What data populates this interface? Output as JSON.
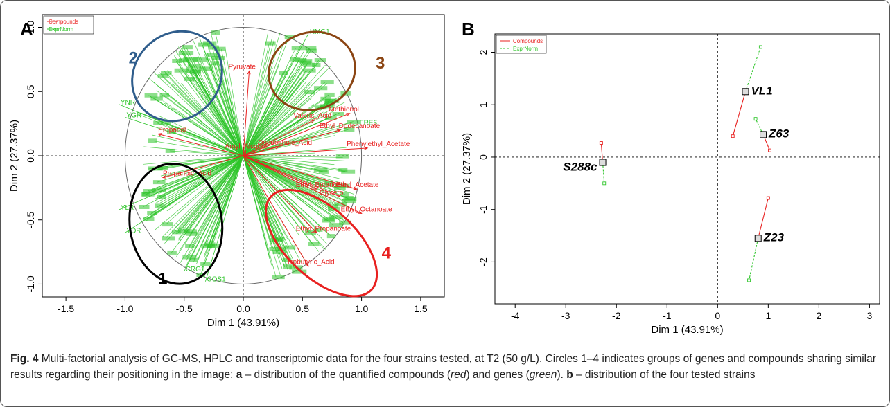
{
  "caption": {
    "fig_label": "Fig. 4",
    "part1": " Multi-factorial analysis of GC-MS, HPLC and transcriptomic data for the four strains tested, at T2 (50 g/L). Circles 1–4 indicates groups of genes and compounds sharing similar results regarding their positioning in the image: ",
    "a_label": "a",
    "part2": " – distribution of the quantified compounds (",
    "red_word": "red",
    "part3": ") and genes (",
    "green_word": "green",
    "part4": "). ",
    "b_label": "b",
    "part5": " – distribution of the four tested strains"
  },
  "colors": {
    "compounds": "#e8201f",
    "genes": "#2ec52a",
    "circle1": "#000000",
    "circle2": "#2f5d8c",
    "circle3": "#8b4513",
    "circle4": "#e8201f"
  },
  "chart_data": [
    {
      "panel": "A",
      "type": "scatter",
      "subtype": "correlation-circle",
      "xlabel": "Dim 1 (43.91%)",
      "ylabel": "Dim 2 (27.37%)",
      "xlim": [
        -1.7,
        1.7
      ],
      "ylim": [
        -1.1,
        1.1
      ],
      "xticks": [
        -1.5,
        -1.0,
        -0.5,
        0.0,
        0.5,
        1.0,
        1.5
      ],
      "xtick_labels": [
        "-1.5",
        "-1.0",
        "-0.5",
        "0.0",
        "0.5",
        "1.0",
        "1.5"
      ],
      "yticks": [
        -1.0,
        -0.5,
        0.0,
        0.5,
        1.0
      ],
      "ytick_labels": [
        "-1.0",
        "-0.5",
        "0.0",
        "0.5",
        "1.0"
      ],
      "legend": {
        "position": "top-left",
        "entries": [
          "Compounds",
          "ExprNorm"
        ]
      },
      "compounds": [
        {
          "name": "Pyruvate",
          "x": 0.05,
          "y": 0.66
        },
        {
          "name": "Propanol",
          "x": -0.72,
          "y": 0.17
        },
        {
          "name": "Propanoic_Acid",
          "x": -0.68,
          "y": -0.17
        },
        {
          "name": "Amyl_Alcohol",
          "x": 0.02,
          "y": 0.04
        },
        {
          "name": "Valeric_Acid",
          "x": 0.6,
          "y": 0.28
        },
        {
          "name": "Methionol",
          "x": 0.9,
          "y": 0.33
        },
        {
          "name": "Ethyl_Dodecanoate",
          "x": 0.82,
          "y": 0.2
        },
        {
          "name": "Dodecanoic_Acid",
          "x": 0.3,
          "y": 0.07
        },
        {
          "name": "Ethyl_Butanoate",
          "x": 0.62,
          "y": -0.26
        },
        {
          "name": "Glycerol",
          "x": 0.82,
          "y": -0.32
        },
        {
          "name": "Ethyl_Propanoate",
          "x": 0.62,
          "y": -0.6
        },
        {
          "name": "Isobutyric_Acid",
          "x": 0.55,
          "y": -0.86
        },
        {
          "name": "Phenylethyl_Acetate",
          "x": 1.05,
          "y": 0.06
        },
        {
          "name": "Ethyl_Acetate",
          "x": 0.96,
          "y": -0.26
        },
        {
          "name": "Ethyl_Octanoate",
          "x": 1.0,
          "y": -0.45
        }
      ],
      "genes": [
        {
          "name": "HMG1",
          "x": 0.55,
          "y": 0.95
        },
        {
          "name": "YNR",
          "x": -1.05,
          "y": 0.4
        },
        {
          "name": "YGR",
          "x": -1.0,
          "y": 0.3
        },
        {
          "name": "YLR",
          "x": -1.05,
          "y": -0.42
        },
        {
          "name": "YDR",
          "x": -1.0,
          "y": -0.6
        },
        {
          "name": "CRG1",
          "x": -0.5,
          "y": -0.9
        },
        {
          "name": "COS1",
          "x": -0.32,
          "y": -0.98
        },
        {
          "name": "FRE6",
          "x": 0.97,
          "y": 0.24
        }
      ],
      "groups": [
        {
          "name": "1",
          "label": "1"
        },
        {
          "name": "2",
          "label": "2"
        },
        {
          "name": "3",
          "label": "3"
        },
        {
          "name": "4",
          "label": "4"
        }
      ]
    },
    {
      "panel": "B",
      "type": "scatter",
      "xlabel": "Dim 1 (43.91%)",
      "ylabel": "Dim 2 (27.37%)",
      "xlim": [
        -4.4,
        3.2
      ],
      "ylim": [
        -2.8,
        2.35
      ],
      "xticks": [
        -4,
        -3,
        -2,
        -1,
        0,
        1,
        2,
        3
      ],
      "xtick_labels": [
        "-4",
        "-3",
        "-2",
        "-1",
        "0",
        "1",
        "2",
        "3"
      ],
      "yticks": [
        -2,
        -1,
        0,
        1,
        2
      ],
      "ytick_labels": [
        "-2",
        "-1",
        "0",
        "1",
        "2"
      ],
      "legend": {
        "position": "top-left",
        "entries": [
          "Compounds",
          "ExprNorm"
        ]
      },
      "strains": [
        {
          "name": "S288c",
          "x": -2.27,
          "y": -0.1,
          "compounds": {
            "x": -2.3,
            "y": 0.27
          },
          "expr": {
            "x": -2.24,
            "y": -0.5
          }
        },
        {
          "name": "VL1",
          "x": 0.55,
          "y": 1.25,
          "compounds": {
            "x": 0.3,
            "y": 0.4
          },
          "expr": {
            "x": 0.85,
            "y": 2.1
          }
        },
        {
          "name": "Z63",
          "x": 0.9,
          "y": 0.43,
          "compounds": {
            "x": 1.03,
            "y": 0.13
          },
          "expr": {
            "x": 0.75,
            "y": 0.73
          }
        },
        {
          "name": "Z23",
          "x": 0.8,
          "y": -1.55,
          "compounds": {
            "x": 1.0,
            "y": -0.78
          },
          "expr": {
            "x": 0.62,
            "y": -2.35
          }
        }
      ]
    }
  ]
}
